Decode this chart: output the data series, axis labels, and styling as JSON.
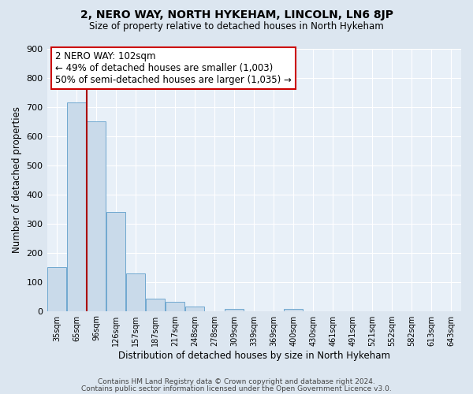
{
  "title": "2, NERO WAY, NORTH HYKEHAM, LINCOLN, LN6 8JP",
  "subtitle": "Size of property relative to detached houses in North Hykeham",
  "xlabel": "Distribution of detached houses by size in North Hykeham",
  "ylabel": "Number of detached properties",
  "bin_labels": [
    "35sqm",
    "65sqm",
    "96sqm",
    "126sqm",
    "157sqm",
    "187sqm",
    "217sqm",
    "248sqm",
    "278sqm",
    "309sqm",
    "339sqm",
    "369sqm",
    "400sqm",
    "430sqm",
    "461sqm",
    "491sqm",
    "521sqm",
    "552sqm",
    "582sqm",
    "613sqm",
    "643sqm"
  ],
  "bar_heights": [
    150,
    715,
    650,
    340,
    128,
    42,
    30,
    15,
    0,
    8,
    0,
    0,
    8,
    0,
    0,
    0,
    0,
    0,
    0,
    0,
    0
  ],
  "bar_color": "#c9daea",
  "bar_edge_color": "#6fa8d0",
  "vline_x": 1.5,
  "vline_color": "#aa0000",
  "ylim": [
    0,
    900
  ],
  "yticks": [
    0,
    100,
    200,
    300,
    400,
    500,
    600,
    700,
    800,
    900
  ],
  "annotation_title": "2 NERO WAY: 102sqm",
  "annotation_line1": "← 49% of detached houses are smaller (1,003)",
  "annotation_line2": "50% of semi-detached houses are larger (1,035) →",
  "annotation_box_color": "#ffffff",
  "annotation_box_edge": "#cc0000",
  "footer1": "Contains HM Land Registry data © Crown copyright and database right 2024.",
  "footer2": "Contains public sector information licensed under the Open Government Licence v3.0.",
  "bg_color": "#dce6f0",
  "plot_bg_color": "#e8f0f8",
  "grid_color": "#ffffff"
}
